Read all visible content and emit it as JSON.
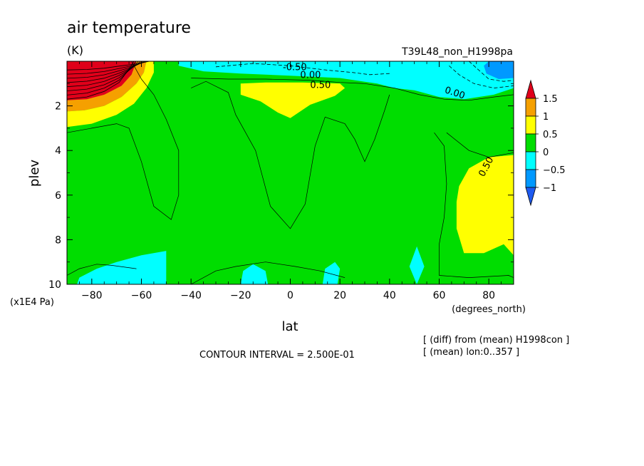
{
  "chart_data": {
    "type": "contour",
    "title": "air temperature",
    "units": "(K)",
    "run_label": "T39L48_non_H1998pa",
    "xlabel": "lat",
    "xunits": "(degrees_north)",
    "ylabel": "plev",
    "yunits": "(x1E4 Pa)",
    "xlim": [
      -90,
      90
    ],
    "ylim": [
      10,
      0
    ],
    "xticks": [
      -80,
      -60,
      -40,
      -20,
      0,
      20,
      40,
      60,
      80
    ],
    "yticks": [
      2,
      4,
      6,
      8,
      10
    ],
    "contour_interval_text": "CONTOUR INTERVAL = 2.500E-01",
    "notes": [
      "[ (diff) from (mean) H1998con ]",
      "[ (mean) lon:0..357 ]"
    ],
    "contour_labels": [
      "-0.50",
      "0.00",
      "0.50",
      "0.00",
      "0.50"
    ],
    "colorbar": {
      "levels": [
        "1.5",
        "1",
        "0.5",
        "0",
        "-0.5",
        "-1"
      ],
      "colors": {
        "above_1.5": "#e0001a",
        "1_to_1.5": "#f5a000",
        "0.5_to_1": "#ffff00",
        "0_to_0.5": "#00dd00",
        "-0.5_to_0": "#00ffff",
        "-1_to_-0.5": "#0099ff",
        "below_-1": "#1e5af0"
      }
    },
    "colors": {
      "red": "#e0001a",
      "orange": "#f5a000",
      "yellow": "#ffff00",
      "green": "#00dd00",
      "cyan": "#00ffff",
      "blue": "#0099ff",
      "darkblue": "#1e5af0"
    },
    "regions": [
      {
        "level": "0_to_0.5",
        "desc": "background",
        "lat_range": [
          -90,
          90
        ],
        "plev_range": [
          0,
          10
        ]
      },
      {
        "level": "1_to_1.5+",
        "desc": "polar stratospheric warm maximum",
        "lat_range": [
          -90,
          -58
        ],
        "plev_range": [
          0,
          2.5
        ]
      },
      {
        "level": "0.5_to_1",
        "desc": "tropical upper warm anomaly",
        "lat_range": [
          -20,
          25
        ],
        "plev_range": [
          0.9,
          2.6
        ]
      },
      {
        "level": "0.5_to_1",
        "desc": "northern mid-latitude warm anomaly",
        "lat_range": [
          68,
          90
        ],
        "plev_range": [
          4.3,
          8.7
        ]
      },
      {
        "level": "-0.5_to_0",
        "desc": "upper tropical/northern cold anomaly",
        "lat_range": [
          -45,
          90
        ],
        "plev_range": [
          0,
          1.7
        ]
      },
      {
        "level": "-1_to_-0.5",
        "desc": "north polar cold core",
        "lat_range": [
          78,
          90
        ],
        "plev_range": [
          0,
          0.8
        ]
      }
    ]
  }
}
